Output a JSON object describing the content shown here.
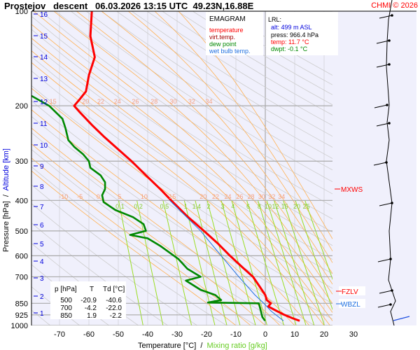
{
  "header": {
    "title": "Prostejov   descent   06.03.2026 13:15 UTC  49.23N,16.88E",
    "copyright": "CHMI © 2026"
  },
  "legend": {
    "title": "EMAGRAM",
    "items": [
      {
        "label": "temperature",
        "color": "#ff0000"
      },
      {
        "label": "virt.temp.",
        "color": "#a00000"
      },
      {
        "label": "dew point",
        "color": "#008800"
      },
      {
        "label": "wet bulb temp.",
        "color": "#2070e0"
      }
    ]
  },
  "lrl": {
    "title": "LRL:",
    "alt": "alt: 499 m ASL",
    "press": "press: 966.4 hPa",
    "temp": "temp: 11.7 °C",
    "dwpt": "dwpt: -0.1 °C"
  },
  "table": {
    "headers": [
      "p [hPa]",
      "T",
      "Td [°C]"
    ],
    "rows": [
      [
        "500",
        "-20.9",
        "-40.6"
      ],
      [
        "700",
        "-4.2",
        "-22.0"
      ],
      [
        "850",
        "1.9",
        "-2.2"
      ]
    ]
  },
  "levels": {
    "mxws": "MXWS",
    "fzlv": "FZLV",
    "wbzl": "WBZL"
  },
  "chart_data": {
    "type": "line",
    "title": "EMAGRAM",
    "xlabel": "Temperature [°C]",
    "xlabel2": "Mixing ratio [g/kg]",
    "ylabel": "Pressure [hPa]",
    "ylabel2": "Altitude [km]",
    "xlim": [
      -80,
      40
    ],
    "ylim": [
      1000,
      100
    ],
    "yscale": "log",
    "xticks": [
      "-70",
      "-60",
      "-50",
      "-40",
      "-30",
      "-20",
      "-10",
      "0",
      "10",
      "20",
      "30"
    ],
    "yticks": [
      "100",
      "200",
      "300",
      "400",
      "500",
      "600",
      "700",
      "850",
      "925",
      "1000"
    ],
    "altitude_ticks_km": [
      "1",
      "2",
      "3",
      "4",
      "5",
      "6",
      "7",
      "8",
      "9",
      "10",
      "11",
      "12",
      "13",
      "14",
      "15",
      "16"
    ],
    "moist_adiabat_labels": [
      "-10",
      "-5",
      "0",
      "5",
      "10",
      "15",
      "20",
      "22",
      "24",
      "26",
      "28",
      "30",
      "32",
      "34"
    ],
    "mixing_ratio_labels": [
      "0.1",
      "0.2",
      "0.5",
      "1",
      "1.4",
      "2",
      "3",
      "4",
      "6",
      "8",
      "10",
      "12",
      "15",
      "20",
      "25"
    ],
    "series": [
      {
        "name": "temperature",
        "color": "#ff0000",
        "points": [
          [
            100,
            -59
          ],
          [
            120,
            -59.5
          ],
          [
            140,
            -58
          ],
          [
            160,
            -60
          ],
          [
            180,
            -61
          ],
          [
            190,
            -63
          ],
          [
            200,
            -65
          ],
          [
            210,
            -63
          ],
          [
            230,
            -59
          ],
          [
            250,
            -55
          ],
          [
            270,
            -51
          ],
          [
            300,
            -45.5
          ],
          [
            330,
            -41
          ],
          [
            370,
            -35.5
          ],
          [
            400,
            -32
          ],
          [
            450,
            -26.5
          ],
          [
            500,
            -20.9
          ],
          [
            550,
            -16
          ],
          [
            600,
            -12
          ],
          [
            650,
            -8
          ],
          [
            700,
            -4.2
          ],
          [
            750,
            -2
          ],
          [
            800,
            0
          ],
          [
            830,
            0.5
          ],
          [
            850,
            1.9
          ],
          [
            870,
            1.0
          ],
          [
            900,
            4
          ],
          [
            925,
            6.5
          ],
          [
            950,
            9.5
          ],
          [
            966,
            11.7
          ]
        ]
      },
      {
        "name": "dew point",
        "color": "#008800",
        "points": [
          [
            186,
            -79.5
          ],
          [
            200,
            -73.5
          ],
          [
            220,
            -69
          ],
          [
            235,
            -68
          ],
          [
            257,
            -67
          ],
          [
            270,
            -65
          ],
          [
            285,
            -62
          ],
          [
            300,
            -60
          ],
          [
            315,
            -59.5
          ],
          [
            333,
            -56
          ],
          [
            350,
            -54.5
          ],
          [
            368,
            -54.5
          ],
          [
            385,
            -55.5
          ],
          [
            405,
            -55
          ],
          [
            429,
            -51
          ],
          [
            452,
            -45
          ],
          [
            476,
            -41.4
          ],
          [
            500,
            -40.6
          ],
          [
            515,
            -46
          ],
          [
            528,
            -40
          ],
          [
            560,
            -35.5
          ],
          [
            615,
            -29.5
          ],
          [
            660,
            -26.5
          ],
          [
            700,
            -22
          ],
          [
            720,
            -27
          ],
          [
            770,
            -22
          ],
          [
            800,
            -17
          ],
          [
            830,
            -15
          ],
          [
            845,
            -19.5
          ],
          [
            850,
            -2.2
          ],
          [
            900,
            -1.5
          ],
          [
            940,
            -1
          ],
          [
            966,
            -0.1
          ]
        ]
      },
      {
        "name": "wet bulb temp.",
        "color": "#2070e0",
        "points": [
          [
            400,
            -32.5
          ],
          [
            500,
            -22
          ],
          [
            600,
            -15
          ],
          [
            700,
            -9
          ],
          [
            800,
            -3.5
          ],
          [
            850,
            -0.5
          ],
          [
            900,
            2
          ],
          [
            966,
            6.2
          ]
        ]
      }
    ]
  }
}
